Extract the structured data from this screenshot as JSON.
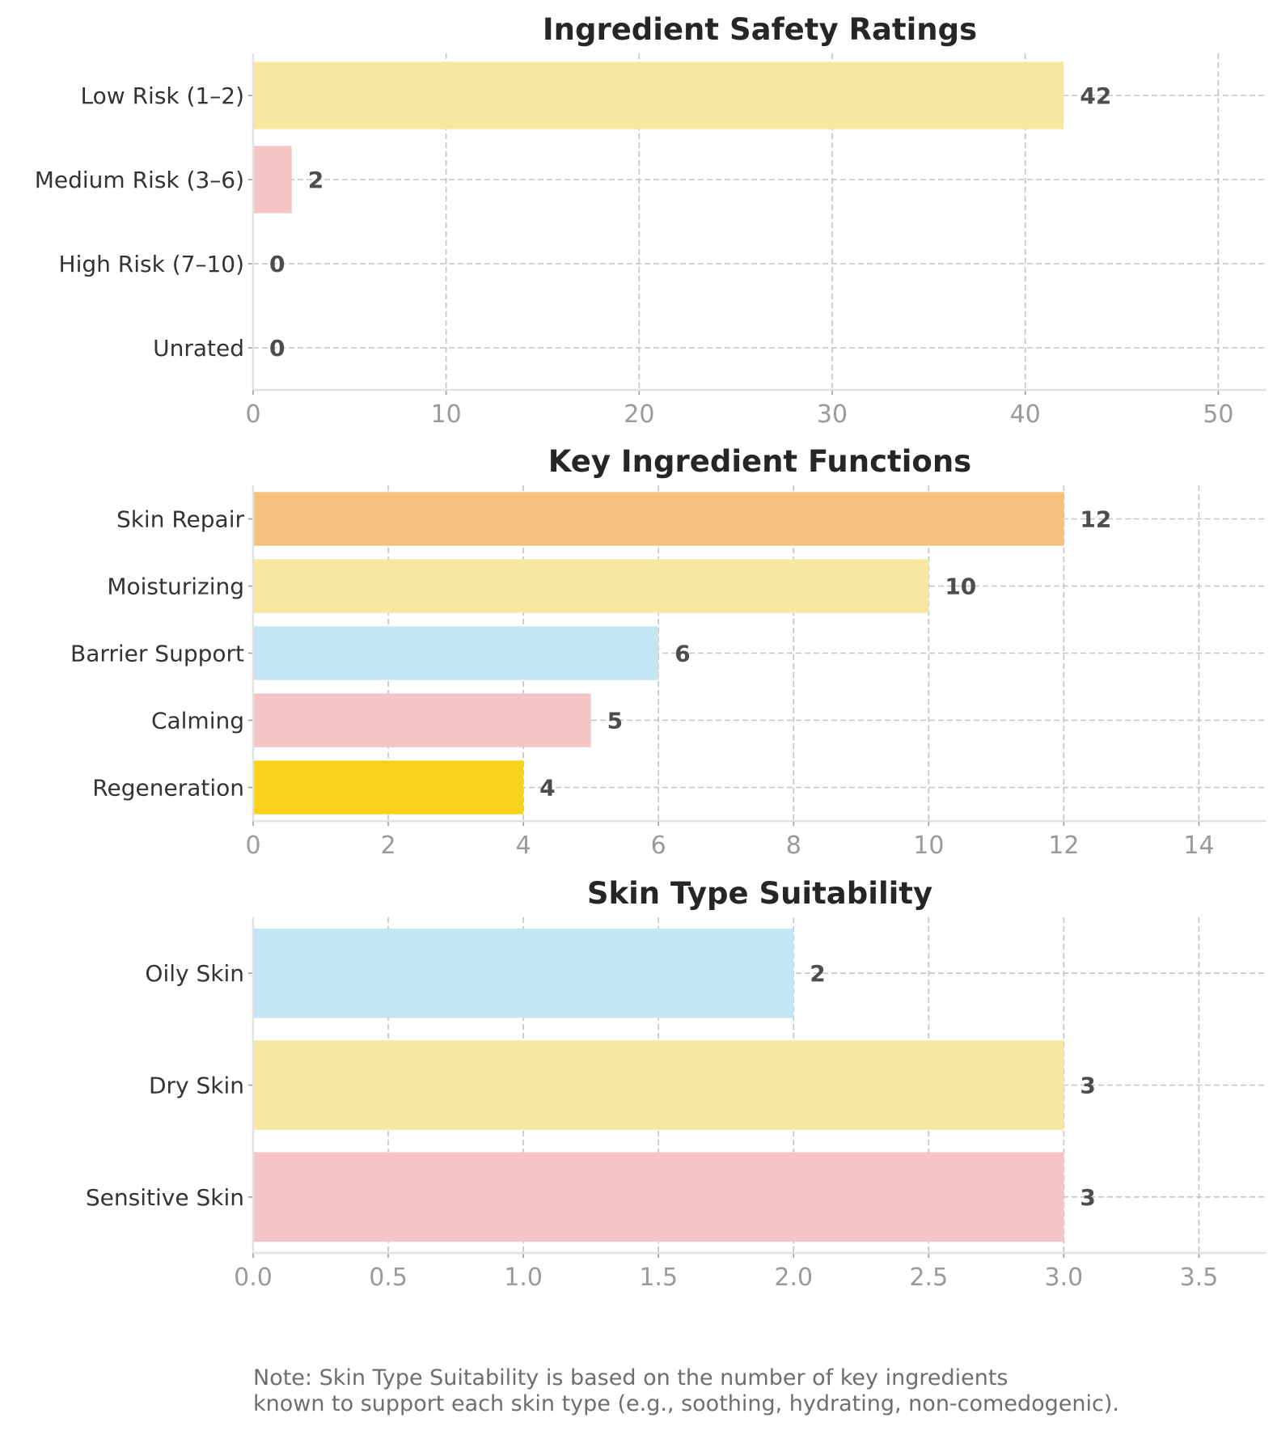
{
  "chart_data": [
    {
      "type": "bar",
      "orientation": "horizontal",
      "title": "Ingredient Safety Ratings",
      "categories": [
        "Low Risk (1–2)",
        "Medium Risk (3–6)",
        "High Risk (7–10)",
        "Unrated"
      ],
      "values": [
        42,
        2,
        0,
        0
      ],
      "value_labels": [
        "42",
        "2",
        "0",
        "0"
      ],
      "colors": [
        "#f7e7a1",
        "#f4c4c7",
        "#c4e6f2",
        "#f6d31a"
      ],
      "xlim": [
        0,
        52.5
      ],
      "xticks": [
        0,
        10,
        20,
        30,
        40,
        50
      ],
      "xtick_labels": [
        "0",
        "10",
        "20",
        "30",
        "40",
        "50"
      ],
      "grid": true,
      "xlabel": "",
      "ylabel": ""
    },
    {
      "type": "bar",
      "orientation": "horizontal",
      "title": "Key Ingredient Functions",
      "categories": [
        "Skin Repair",
        "Moisturizing",
        "Barrier Support",
        "Calming",
        "Regeneration"
      ],
      "values": [
        12,
        10,
        6,
        5,
        4
      ],
      "value_labels": [
        "12",
        "10",
        "6",
        "5",
        "4"
      ],
      "colors": [
        "#f4c07c",
        "#f7e7a1",
        "#c4e6f2",
        "#f4c4c7",
        "#f6d31a"
      ],
      "xlim": [
        0,
        15
      ],
      "xticks": [
        0,
        2,
        4,
        6,
        8,
        10,
        12,
        14
      ],
      "xtick_labels": [
        "0",
        "2",
        "4",
        "6",
        "8",
        "10",
        "12",
        "14"
      ],
      "grid": true,
      "xlabel": "",
      "ylabel": ""
    },
    {
      "type": "bar",
      "orientation": "horizontal",
      "title": "Skin Type Suitability",
      "categories": [
        "Oily Skin",
        "Dry Skin",
        "Sensitive Skin"
      ],
      "values": [
        2,
        3,
        3
      ],
      "value_labels": [
        "2",
        "3",
        "3"
      ],
      "colors": [
        "#c4e6f2",
        "#f7e7a1",
        "#f4c4c7"
      ],
      "xlim": [
        0,
        3.75
      ],
      "xticks": [
        0,
        0.5,
        1,
        1.5,
        2,
        2.5,
        3,
        3.5
      ],
      "xtick_labels": [
        "0.0",
        "0.5",
        "1.0",
        "1.5",
        "2.0",
        "2.5",
        "3.0",
        "3.5"
      ],
      "grid": true,
      "xlabel": "",
      "ylabel": ""
    }
  ],
  "note": {
    "line1": "Note: Skin Type Suitability is based on the number of key ingredients",
    "line2": "known to support each skin type (e.g., soothing, hydrating, non-comedogenic)."
  }
}
